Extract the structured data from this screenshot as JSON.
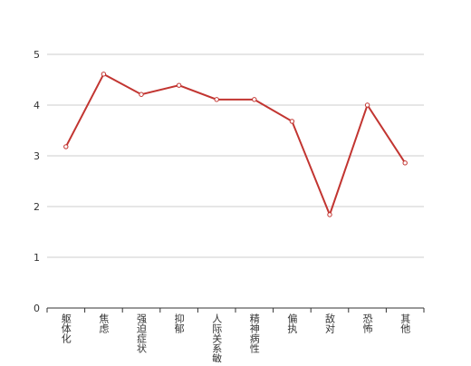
{
  "chart_data": {
    "type": "line",
    "categories": [
      "躯体化",
      "焦虑",
      "强迫症状",
      "抑郁",
      "人际关系敏感",
      "精神病性",
      "偏执",
      "敌对",
      "恐怖",
      "其他"
    ],
    "series": [
      {
        "color": "#c23531",
        "values": [
          3.18,
          4.61,
          4.21,
          4.39,
          4.11,
          4.11,
          3.68,
          1.84,
          4.0,
          2.86
        ]
      }
    ],
    "ylim": [
      0,
      5
    ],
    "yticks": [
      0,
      1,
      2,
      3,
      4,
      5
    ],
    "grid": true
  }
}
